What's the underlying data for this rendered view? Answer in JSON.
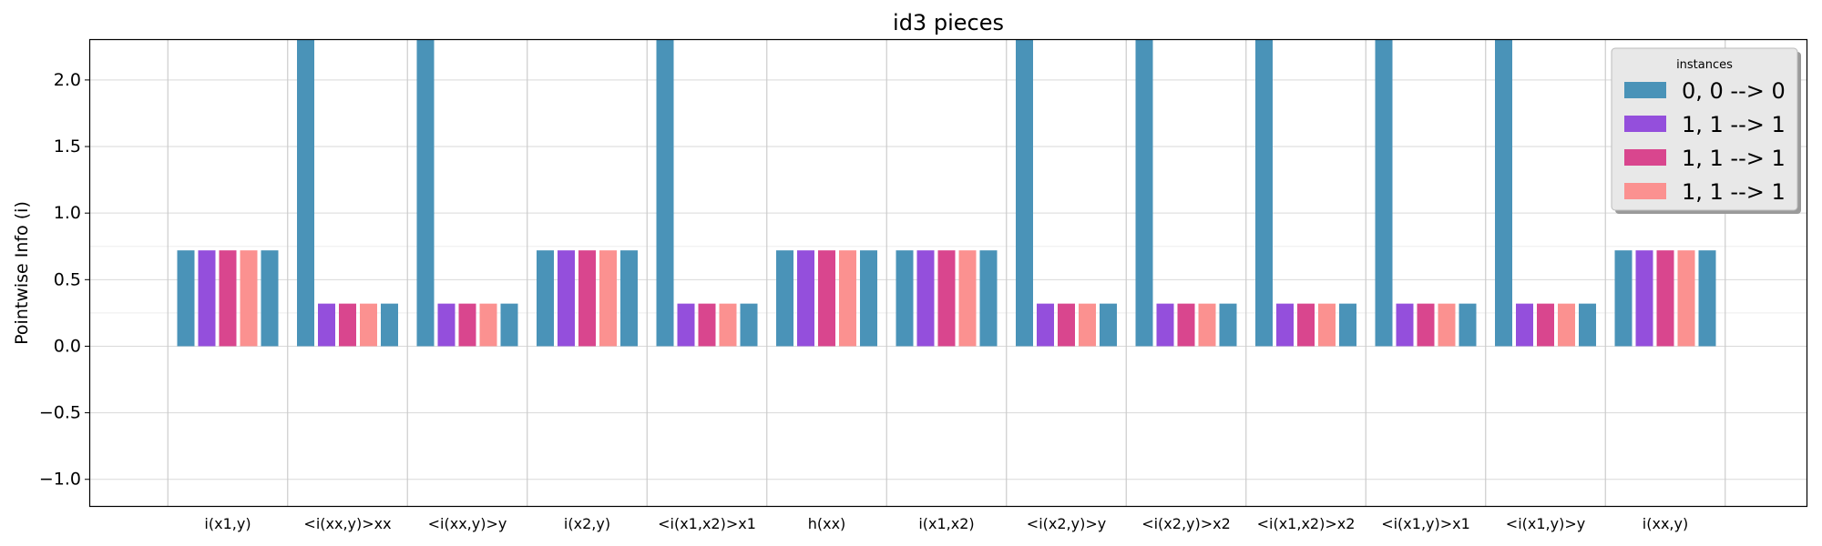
{
  "chart_data": {
    "type": "bar",
    "title": "id3 pieces",
    "xlabel": "",
    "ylabel": "Pointwise Info (i)",
    "ylim": [
      -1.2,
      2.3
    ],
    "yticks": [
      -1.0,
      -0.5,
      0.0,
      0.5,
      1.0,
      1.5,
      2.0
    ],
    "ytick_labels": [
      "−1.0",
      "−0.5",
      "0.0",
      "0.5",
      "1.0",
      "1.5",
      "2.0"
    ],
    "grid": true,
    "legend_position": "top-right",
    "legend_title": "instances",
    "categories": [
      "i(x1,y)",
      "<i(xx,y)>xx",
      "<i(xx,y)>y",
      "i(x2,y)",
      "<i(x1,x2)>x1",
      "h(xx)",
      "i(x1,x2)",
      "<i(x2,y)>y",
      "<i(x2,y)>x2",
      "<i(x1,x2)>x2",
      "<i(x1,y)>x1",
      "<i(x1,y)>y",
      "i(xx,y)"
    ],
    "series": [
      {
        "name": "0, 0 --> 0",
        "color": "#4a93b8",
        "values": [
          0.72,
          2.32,
          2.32,
          0.72,
          2.32,
          0.72,
          0.72,
          2.32,
          2.32,
          2.32,
          2.32,
          2.32,
          0.72
        ]
      },
      {
        "name": "1, 1 --> 1",
        "color": "#944fdc",
        "values": [
          0.72,
          0.32,
          0.32,
          0.72,
          0.32,
          0.72,
          0.72,
          0.32,
          0.32,
          0.32,
          0.32,
          0.32,
          0.72
        ]
      },
      {
        "name": "1, 1 --> 1",
        "color": "#d9468e",
        "values": [
          0.72,
          0.32,
          0.32,
          0.72,
          0.32,
          0.72,
          0.72,
          0.32,
          0.32,
          0.32,
          0.32,
          0.32,
          0.72
        ]
      },
      {
        "name": "1, 1 --> 1",
        "color": "#fb9190",
        "values": [
          0.72,
          0.32,
          0.32,
          0.72,
          0.32,
          0.72,
          0.72,
          0.32,
          0.32,
          0.32,
          0.32,
          0.32,
          0.72
        ]
      }
    ],
    "trailing_bar_values": [
      0.72,
      0.32,
      0.32,
      0.72,
      0.32,
      0.72,
      0.72,
      0.32,
      0.32,
      0.32,
      0.32,
      0.32,
      0.72
    ],
    "trailing_bar_color": "#4a93b8"
  }
}
